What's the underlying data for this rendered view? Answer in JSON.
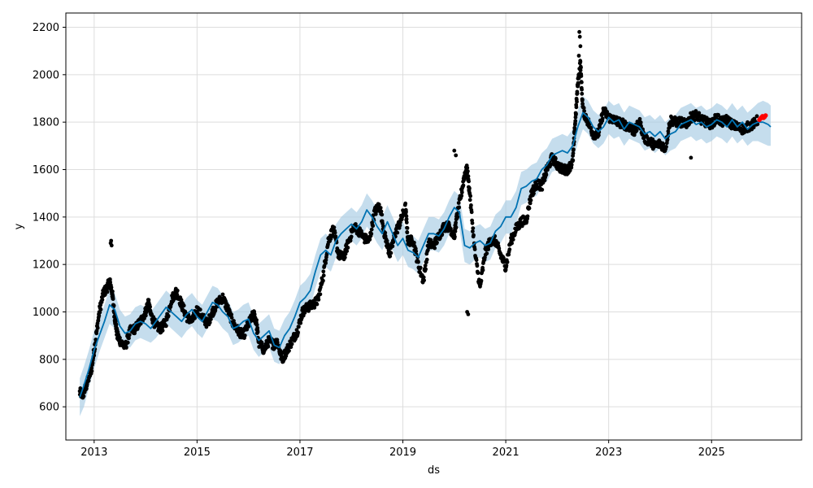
{
  "chart_data": {
    "type": "line",
    "title": "",
    "xlabel": "ds",
    "ylabel": "y",
    "xlim": [
      2012.45,
      2026.75
    ],
    "ylim": [
      460,
      2260
    ],
    "grid": true,
    "x_ticks": [
      2013,
      2015,
      2017,
      2019,
      2021,
      2023,
      2025
    ],
    "x_tick_labels": [
      "2013",
      "2015",
      "2017",
      "2019",
      "2021",
      "2023",
      "2025"
    ],
    "y_ticks": [
      600,
      800,
      1000,
      1200,
      1400,
      1600,
      1800,
      2000,
      2200
    ],
    "y_tick_labels": [
      "600",
      "800",
      "1000",
      "1200",
      "1400",
      "1600",
      "1800",
      "2000",
      "2200"
    ],
    "colors": {
      "forecast_line": "#0072B2",
      "uncertainty_band": "#a6cbe3",
      "observed_points": "#000000",
      "highlight_points": "#ff0000",
      "grid": "#dddddd"
    },
    "series": [
      {
        "role": "forecast",
        "x": [
          2012.72,
          2012.8,
          2012.9,
          2013.0,
          2013.1,
          2013.2,
          2013.3,
          2013.4,
          2013.5,
          2013.6,
          2013.7,
          2013.8,
          2013.9,
          2014.0,
          2014.1,
          2014.2,
          2014.3,
          2014.4,
          2014.5,
          2014.6,
          2014.7,
          2014.8,
          2014.9,
          2015.0,
          2015.1,
          2015.2,
          2015.3,
          2015.4,
          2015.5,
          2015.6,
          2015.7,
          2015.8,
          2015.9,
          2016.0,
          2016.1,
          2016.2,
          2016.3,
          2016.4,
          2016.5,
          2016.6,
          2016.7,
          2016.8,
          2016.9,
          2017.0,
          2017.1,
          2017.2,
          2017.3,
          2017.4,
          2017.5,
          2017.6,
          2017.7,
          2017.8,
          2017.9,
          2018.0,
          2018.1,
          2018.2,
          2018.3,
          2018.4,
          2018.5,
          2018.6,
          2018.7,
          2018.8,
          2018.9,
          2019.0,
          2019.1,
          2019.2,
          2019.3,
          2019.4,
          2019.5,
          2019.6,
          2019.7,
          2019.8,
          2019.9,
          2020.0,
          2020.1,
          2020.2,
          2020.3,
          2020.4,
          2020.5,
          2020.6,
          2020.7,
          2020.8,
          2020.9,
          2021.0,
          2021.1,
          2021.2,
          2021.3,
          2021.4,
          2021.5,
          2021.6,
          2021.7,
          2021.8,
          2021.9,
          2022.0,
          2022.1,
          2022.2,
          2022.3,
          2022.4,
          2022.5,
          2022.6,
          2022.7,
          2022.8,
          2022.9,
          2023.0,
          2023.1,
          2023.2,
          2023.3,
          2023.4,
          2023.5,
          2023.6,
          2023.7,
          2023.8,
          2023.9,
          2024.0,
          2024.1,
          2024.2,
          2024.3,
          2024.4,
          2024.5,
          2024.6,
          2024.7,
          2024.8,
          2024.9,
          2025.0,
          2025.1,
          2025.2,
          2025.3,
          2025.4,
          2025.5,
          2025.6,
          2025.7,
          2025.8,
          2025.9,
          2026.0,
          2026.1,
          2026.15
        ],
        "y": [
          640,
          690,
          760,
          840,
          900,
          960,
          1030,
          1010,
          940,
          910,
          920,
          950,
          960,
          950,
          930,
          960,
          990,
          1020,
          1000,
          980,
          960,
          990,
          1010,
          980,
          960,
          1000,
          1040,
          1030,
          1000,
          980,
          930,
          940,
          960,
          970,
          910,
          880,
          900,
          920,
          860,
          850,
          900,
          930,
          980,
          1040,
          1060,
          1090,
          1170,
          1240,
          1260,
          1240,
          1300,
          1330,
          1350,
          1370,
          1350,
          1380,
          1430,
          1400,
          1360,
          1330,
          1380,
          1330,
          1280,
          1310,
          1260,
          1250,
          1230,
          1280,
          1330,
          1330,
          1320,
          1350,
          1400,
          1440,
          1420,
          1280,
          1270,
          1290,
          1300,
          1280,
          1290,
          1340,
          1360,
          1400,
          1400,
          1440,
          1520,
          1530,
          1550,
          1560,
          1600,
          1620,
          1660,
          1670,
          1680,
          1670,
          1700,
          1780,
          1840,
          1820,
          1780,
          1760,
          1780,
          1820,
          1800,
          1810,
          1770,
          1800,
          1790,
          1780,
          1750,
          1760,
          1740,
          1760,
          1730,
          1750,
          1760,
          1790,
          1800,
          1810,
          1790,
          1800,
          1780,
          1790,
          1810,
          1800,
          1780,
          1810,
          1780,
          1800,
          1770,
          1790,
          1800,
          1800,
          1790,
          1780
        ],
        "lower": [
          560,
          600,
          680,
          760,
          830,
          890,
          950,
          930,
          860,
          850,
          850,
          880,
          890,
          880,
          870,
          890,
          920,
          950,
          930,
          910,
          890,
          920,
          940,
          910,
          890,
          930,
          970,
          960,
          930,
          910,
          860,
          870,
          890,
          900,
          840,
          810,
          830,
          850,
          790,
          780,
          830,
          860,
          910,
          970,
          990,
          1020,
          1100,
          1170,
          1190,
          1170,
          1230,
          1260,
          1280,
          1300,
          1280,
          1310,
          1360,
          1330,
          1290,
          1260,
          1310,
          1260,
          1210,
          1240,
          1190,
          1180,
          1160,
          1210,
          1260,
          1260,
          1250,
          1280,
          1330,
          1370,
          1350,
          1210,
          1200,
          1220,
          1230,
          1210,
          1220,
          1270,
          1290,
          1330,
          1330,
          1370,
          1450,
          1460,
          1480,
          1490,
          1530,
          1550,
          1590,
          1600,
          1610,
          1600,
          1630,
          1710,
          1770,
          1750,
          1710,
          1690,
          1710,
          1750,
          1730,
          1740,
          1700,
          1730,
          1720,
          1710,
          1680,
          1690,
          1670,
          1690,
          1660,
          1680,
          1690,
          1720,
          1730,
          1740,
          1720,
          1730,
          1710,
          1720,
          1740,
          1730,
          1710,
          1740,
          1710,
          1730,
          1700,
          1720,
          1720,
          1710,
          1700,
          1700
        ],
        "upper": [
          720,
          770,
          840,
          920,
          970,
          1030,
          1100,
          1080,
          1010,
          980,
          990,
          1020,
          1030,
          1020,
          1000,
          1030,
          1060,
          1090,
          1070,
          1050,
          1030,
          1060,
          1080,
          1050,
          1030,
          1070,
          1110,
          1100,
          1070,
          1050,
          1000,
          1010,
          1030,
          1040,
          980,
          950,
          970,
          990,
          930,
          920,
          970,
          1000,
          1050,
          1110,
          1130,
          1160,
          1240,
          1310,
          1330,
          1310,
          1370,
          1400,
          1420,
          1440,
          1420,
          1450,
          1500,
          1470,
          1430,
          1400,
          1450,
          1400,
          1350,
          1380,
          1330,
          1320,
          1300,
          1350,
          1400,
          1400,
          1390,
          1420,
          1470,
          1510,
          1490,
          1350,
          1340,
          1360,
          1370,
          1350,
          1360,
          1410,
          1430,
          1470,
          1470,
          1510,
          1590,
          1600,
          1620,
          1630,
          1670,
          1690,
          1730,
          1740,
          1750,
          1740,
          1770,
          1850,
          1910,
          1890,
          1850,
          1830,
          1850,
          1890,
          1870,
          1880,
          1840,
          1870,
          1860,
          1850,
          1820,
          1830,
          1810,
          1830,
          1800,
          1820,
          1830,
          1860,
          1870,
          1880,
          1860,
          1870,
          1850,
          1860,
          1880,
          1870,
          1850,
          1880,
          1850,
          1870,
          1840,
          1860,
          1880,
          1890,
          1880,
          1870
        ]
      },
      {
        "role": "observed",
        "anchors_x": [
          2012.72,
          2012.78,
          2012.85,
          2012.95,
          2013.02,
          2013.1,
          2013.18,
          2013.25,
          2013.3,
          2013.35,
          2013.4,
          2013.45,
          2013.5,
          2013.6,
          2013.7,
          2013.8,
          2013.9,
          2014.0,
          2014.05,
          2014.1,
          2014.2,
          2014.3,
          2014.4,
          2014.5,
          2014.6,
          2014.7,
          2014.8,
          2014.9,
          2015.0,
          2015.1,
          2015.2,
          2015.3,
          2015.4,
          2015.5,
          2015.6,
          2015.7,
          2015.8,
          2015.9,
          2016.0,
          2016.1,
          2016.15,
          2016.2,
          2016.3,
          2016.4,
          2016.5,
          2016.55,
          2016.65,
          2016.75,
          2016.85,
          2016.95,
          2017.05,
          2017.15,
          2017.25,
          2017.35,
          2017.45,
          2017.55,
          2017.65,
          2017.75,
          2017.85,
          2017.95,
          2018.05,
          2018.15,
          2018.25,
          2018.35,
          2018.45,
          2018.55,
          2018.65,
          2018.75,
          2018.85,
          2018.95,
          2019.05,
          2019.1,
          2019.2,
          2019.3,
          2019.4,
          2019.5,
          2019.6,
          2019.7,
          2019.8,
          2019.9,
          2020.0,
          2020.05,
          2020.12,
          2020.2,
          2020.25,
          2020.3,
          2020.4,
          2020.5,
          2020.6,
          2020.7,
          2020.8,
          2020.9,
          2021.0,
          2021.1,
          2021.2,
          2021.3,
          2021.4,
          2021.5,
          2021.6,
          2021.7,
          2021.8,
          2021.9,
          2022.0,
          2022.1,
          2022.2,
          2022.3,
          2022.35,
          2022.4,
          2022.45,
          2022.5,
          2022.6,
          2022.7,
          2022.8,
          2022.9,
          2023.0,
          2023.1,
          2023.2,
          2023.3,
          2023.4,
          2023.5,
          2023.6,
          2023.7,
          2023.8,
          2023.9,
          2024.0,
          2024.1,
          2024.2,
          2024.3,
          2024.4,
          2024.5,
          2024.6,
          2024.7,
          2024.8,
          2024.9,
          2025.0,
          2025.1,
          2025.2,
          2025.3,
          2025.4,
          2025.5,
          2025.6,
          2025.7,
          2025.8,
          2025.9
        ],
        "anchors_y": [
          660,
          650,
          690,
          760,
          870,
          1000,
          1080,
          1100,
          1130,
          1080,
          980,
          900,
          880,
          850,
          920,
          930,
          960,
          1000,
          1040,
          990,
          940,
          930,
          960,
          1050,
          1090,
          1030,
          980,
          960,
          1010,
          980,
          950,
          1000,
          1040,
          1060,
          1010,
          950,
          920,
          900,
          950,
          990,
          960,
          870,
          840,
          880,
          860,
          880,
          800,
          840,
          880,
          920,
          1000,
          1020,
          1030,
          1050,
          1150,
          1300,
          1350,
          1240,
          1230,
          1300,
          1360,
          1340,
          1310,
          1300,
          1420,
          1450,
          1320,
          1240,
          1330,
          1380,
          1440,
          1300,
          1300,
          1200,
          1130,
          1290,
          1280,
          1320,
          1360,
          1360,
          1320,
          1400,
          1480,
          1580,
          1600,
          1500,
          1250,
          1100,
          1250,
          1300,
          1300,
          1240,
          1190,
          1300,
          1350,
          1380,
          1390,
          1500,
          1540,
          1530,
          1600,
          1650,
          1620,
          1600,
          1600,
          1630,
          1800,
          1960,
          2050,
          1850,
          1800,
          1750,
          1750,
          1850,
          1820,
          1810,
          1800,
          1790,
          1780,
          1760,
          1800,
          1730,
          1720,
          1700,
          1710,
          1690,
          1810,
          1800,
          1800,
          1790,
          1820,
          1830,
          1810,
          1800,
          1790,
          1820,
          1800,
          1810,
          1790,
          1780,
          1770,
          1780,
          1790,
          1810,
          1800
        ]
      },
      {
        "role": "highlighted",
        "x": [
          2025.93,
          2025.95,
          2025.97,
          2025.99,
          2026.01,
          2026.03,
          2026.05
        ],
        "y": [
          1810,
          1815,
          1820,
          1825,
          1818,
          1822,
          1828
        ]
      }
    ]
  }
}
